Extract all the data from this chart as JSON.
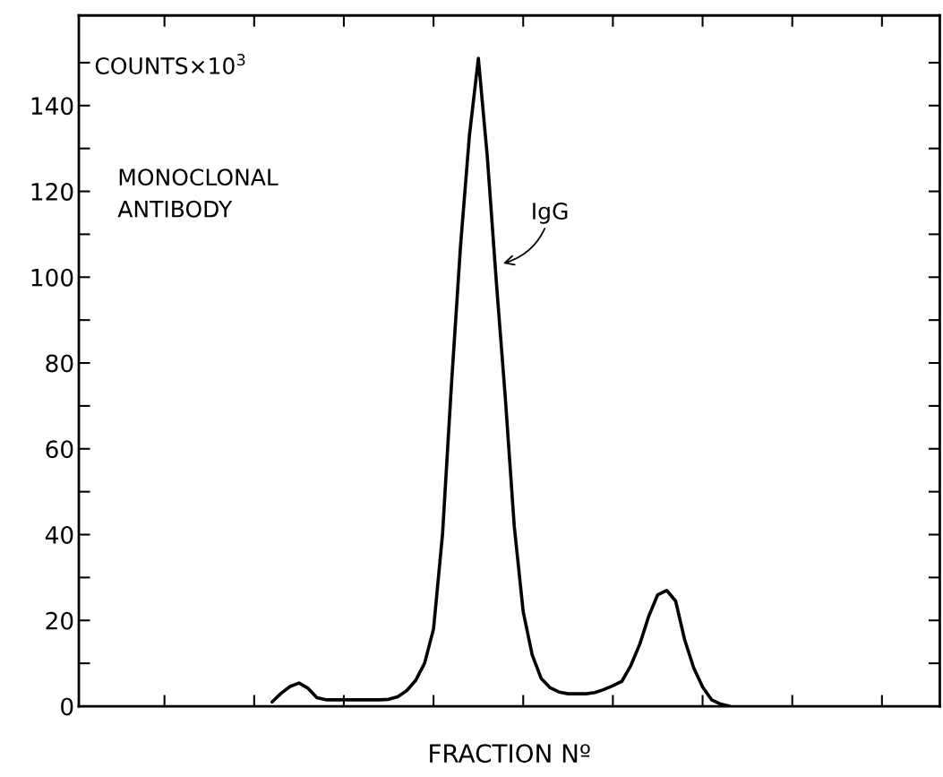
{
  "chart_data": {
    "type": "line",
    "ylabel": "COUNTS×10$^{3}$",
    "xlabel": "FRACTION Nº",
    "annotations": [
      "MONOCLONAL\nANTIBODY",
      "IgG"
    ],
    "categories": [
      null,
      null,
      null,
      null,
      null,
      null,
      null,
      null,
      null,
      null,
      null,
      null,
      null,
      null,
      null,
      null,
      null,
      null,
      null,
      null,
      null,
      null,
      null,
      null,
      null,
      null,
      null,
      null,
      null,
      null,
      null,
      null,
      null,
      null,
      null,
      null,
      null,
      null,
      null,
      null,
      null,
      null,
      null,
      null,
      null,
      null,
      null,
      null,
      null,
      null,
      null,
      null,
      null,
      null,
      null,
      null,
      null,
      null,
      null,
      null,
      null,
      null,
      null,
      null,
      null,
      null,
      null,
      null,
      null,
      null,
      null,
      null,
      null,
      null,
      null,
      null,
      null,
      null,
      null,
      null,
      null,
      null,
      null,
      null,
      null,
      null,
      null,
      null,
      null,
      null,
      null,
      null,
      null,
      null,
      null,
      null,
      null
    ],
    "series": [
      {
        "color": "#000000",
        "values": [
          null,
          null,
          null,
          null,
          null,
          null,
          null,
          null,
          null,
          null,
          null,
          null,
          null,
          null,
          null,
          null,
          null,
          null,
          null,
          null,
          null,
          null,
          1,
          3,
          4.6,
          5.4,
          4.2,
          2,
          1.5,
          1.5,
          1.5,
          1.5,
          1.5,
          1.5,
          1.5,
          1.6,
          2.2,
          3.6,
          6,
          10,
          18,
          40,
          75,
          107,
          133,
          151,
          128,
          99,
          72,
          42,
          22,
          12,
          6.5,
          4.3,
          3.3,
          2.9,
          2.9,
          2.9,
          3.2,
          3.9,
          4.8,
          5.8,
          9.5,
          14.5,
          21,
          26,
          27,
          24.5,
          15.5,
          9,
          4.5,
          1.5,
          0.5,
          0,
          null,
          null,
          null,
          null,
          null,
          null,
          null,
          null,
          null,
          null,
          null,
          null,
          null,
          null,
          null,
          null,
          null,
          null,
          null,
          null,
          null,
          null,
          null
        ]
      }
    ],
    "ylim": [
      0,
      161
    ],
    "yticks": [
      0,
      {
        "value": 10,
        "label": null
      },
      20,
      {
        "value": 30,
        "label": null
      },
      40,
      {
        "value": 50,
        "label": null
      },
      60,
      {
        "value": 70,
        "label": null
      },
      80,
      {
        "value": 90,
        "label": null
      },
      100,
      {
        "value": 110,
        "label": null
      },
      120,
      {
        "value": 130,
        "label": null
      },
      140,
      {
        "value": 150,
        "label": null
      }
    ],
    "tick_labels": "y",
    "grid": false,
    "legend": false,
    "marker": "none",
    "line_style": "solid"
  }
}
